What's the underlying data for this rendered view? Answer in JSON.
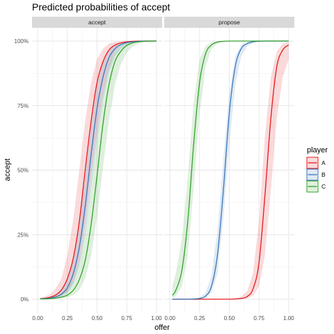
{
  "chart_data": {
    "type": "line",
    "title": "Predicted probabilities of accept",
    "xlabel": "offer",
    "ylabel": "accept",
    "xlim": [
      0,
      1
    ],
    "ylim": [
      0,
      1
    ],
    "x_ticks": [
      0,
      0.25,
      0.5,
      0.75,
      1
    ],
    "x_tick_labels": [
      "0.00",
      "0.25",
      "0.50",
      "0.75",
      "1.00"
    ],
    "y_ticks": [
      0,
      0.25,
      0.5,
      0.75,
      1
    ],
    "y_tick_labels": [
      "0%",
      "25%",
      "50%",
      "75%",
      "100%"
    ],
    "grid": true,
    "legend": {
      "title": "player",
      "position": "right"
    },
    "x": [
      0.02,
      0.05,
      0.1,
      0.15,
      0.2,
      0.25,
      0.3,
      0.35,
      0.4,
      0.45,
      0.5,
      0.55,
      0.6,
      0.65,
      0.7,
      0.75,
      0.8,
      0.85,
      0.9,
      0.95,
      1.0
    ],
    "panels": [
      {
        "name": "accept",
        "series": [
          {
            "name": "A",
            "color": "#e31a1c",
            "y": [
              0.002,
              0.003,
              0.007,
              0.016,
              0.036,
              0.08,
              0.16,
              0.3,
              0.5,
              0.69,
              0.84,
              0.92,
              0.965,
              0.984,
              0.993,
              0.997,
              0.999,
              1.0,
              1.0,
              1.0,
              1.0
            ],
            "lower": [
              0.001,
              0.001,
              0.003,
              0.006,
              0.014,
              0.03,
              0.07,
              0.15,
              0.29,
              0.47,
              0.65,
              0.8,
              0.9,
              0.96,
              0.985,
              0.993,
              0.997,
              0.999,
              1.0,
              1.0,
              1.0
            ],
            "upper": [
              0.006,
              0.009,
              0.018,
              0.04,
              0.08,
              0.17,
              0.31,
              0.5,
              0.69,
              0.84,
              0.93,
              0.97,
              0.99,
              0.997,
              0.999,
              1.0,
              1.0,
              1.0,
              1.0,
              1.0,
              1.0
            ]
          },
          {
            "name": "B",
            "color": "#3a77b8",
            "y": [
              0.002,
              0.002,
              0.004,
              0.009,
              0.02,
              0.045,
              0.1,
              0.2,
              0.36,
              0.56,
              0.74,
              0.86,
              0.935,
              0.97,
              0.986,
              0.994,
              0.997,
              0.999,
              1.0,
              1.0,
              1.0
            ],
            "lower": [
              0.001,
              0.001,
              0.002,
              0.004,
              0.01,
              0.024,
              0.057,
              0.13,
              0.25,
              0.43,
              0.62,
              0.77,
              0.88,
              0.94,
              0.97,
              0.985,
              0.993,
              0.997,
              0.999,
              1.0,
              1.0
            ],
            "upper": [
              0.003,
              0.005,
              0.009,
              0.018,
              0.038,
              0.08,
              0.16,
              0.29,
              0.47,
              0.67,
              0.83,
              0.92,
              0.965,
              0.985,
              0.994,
              0.998,
              0.999,
              1.0,
              1.0,
              1.0,
              1.0
            ]
          },
          {
            "name": "C",
            "color": "#33a02c",
            "y": [
              0.001,
              0.001,
              0.002,
              0.004,
              0.008,
              0.016,
              0.035,
              0.075,
              0.15,
              0.29,
              0.48,
              0.68,
              0.83,
              0.92,
              0.96,
              0.983,
              0.993,
              0.997,
              0.999,
              1.0,
              1.0
            ],
            "lower": [
              0.0,
              0.0,
              0.001,
              0.002,
              0.003,
              0.007,
              0.016,
              0.036,
              0.08,
              0.17,
              0.32,
              0.51,
              0.69,
              0.83,
              0.91,
              0.955,
              0.978,
              0.99,
              0.996,
              0.998,
              0.999
            ],
            "upper": [
              0.002,
              0.003,
              0.005,
              0.01,
              0.02,
              0.04,
              0.075,
              0.15,
              0.27,
              0.45,
              0.64,
              0.8,
              0.91,
              0.96,
              0.984,
              0.994,
              0.998,
              0.999,
              1.0,
              1.0,
              1.0
            ]
          }
        ]
      },
      {
        "name": "propose",
        "series": [
          {
            "name": "A",
            "color": "#e31a1c",
            "y": [
              0.0,
              0.0,
              0.0,
              0.0,
              0.0,
              0.0,
              0.0,
              0.0,
              0.0,
              0.0,
              0.0,
              0.001,
              0.003,
              0.01,
              0.04,
              0.14,
              0.4,
              0.7,
              0.9,
              0.965,
              0.985
            ],
            "lower": [
              0.0,
              0.0,
              0.0,
              0.0,
              0.0,
              0.0,
              0.0,
              0.0,
              0.0,
              0.0,
              0.0,
              0.0,
              0.001,
              0.003,
              0.013,
              0.05,
              0.17,
              0.42,
              0.7,
              0.86,
              0.93
            ],
            "upper": [
              0.0,
              0.0,
              0.0,
              0.0,
              0.0,
              0.0,
              0.0,
              0.0,
              0.0,
              0.0,
              0.001,
              0.003,
              0.01,
              0.03,
              0.1,
              0.3,
              0.63,
              0.86,
              0.96,
              0.99,
              0.997
            ]
          },
          {
            "name": "B",
            "color": "#3a77b8",
            "y": [
              0.0,
              0.0,
              0.0,
              0.0,
              0.001,
              0.003,
              0.012,
              0.05,
              0.17,
              0.42,
              0.72,
              0.9,
              0.97,
              0.99,
              0.997,
              0.999,
              1.0,
              1.0,
              1.0,
              1.0,
              1.0
            ],
            "lower": [
              0.0,
              0.0,
              0.0,
              0.0,
              0.0,
              0.001,
              0.005,
              0.025,
              0.1,
              0.31,
              0.6,
              0.83,
              0.94,
              0.98,
              0.993,
              0.998,
              0.999,
              1.0,
              1.0,
              1.0,
              1.0
            ],
            "upper": [
              0.0,
              0.0,
              0.0,
              0.001,
              0.002,
              0.007,
              0.025,
              0.09,
              0.26,
              0.54,
              0.8,
              0.94,
              0.985,
              0.996,
              0.999,
              1.0,
              1.0,
              1.0,
              1.0,
              1.0,
              1.0
            ]
          },
          {
            "name": "C",
            "color": "#33a02c",
            "y": [
              0.015,
              0.035,
              0.11,
              0.3,
              0.6,
              0.84,
              0.95,
              0.985,
              0.996,
              0.999,
              1.0,
              1.0,
              1.0,
              1.0,
              1.0,
              1.0,
              1.0,
              1.0,
              1.0,
              1.0,
              1.0
            ],
            "lower": [
              0.004,
              0.012,
              0.05,
              0.17,
              0.43,
              0.72,
              0.9,
              0.97,
              0.99,
              0.997,
              0.999,
              1.0,
              1.0,
              1.0,
              1.0,
              1.0,
              1.0,
              1.0,
              1.0,
              1.0,
              1.0
            ],
            "upper": [
              0.05,
              0.1,
              0.23,
              0.47,
              0.76,
              0.93,
              0.98,
              0.995,
              0.999,
              1.0,
              1.0,
              1.0,
              1.0,
              1.0,
              1.0,
              1.0,
              1.0,
              1.0,
              1.0,
              1.0,
              1.0
            ]
          }
        ]
      }
    ]
  }
}
